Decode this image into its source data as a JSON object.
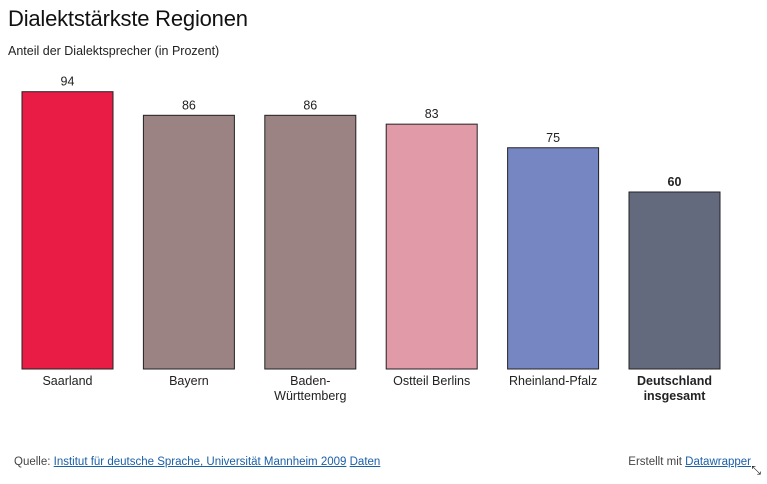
{
  "chart_data": {
    "type": "bar",
    "title": "Dialektstärkste Regionen",
    "subtitle": "Anteil der Dialektsprecher (in Prozent)",
    "categories": [
      "Saarland",
      "Bayern",
      "Baden-Württemberg",
      "Ostteil Berlins",
      "Rheinland-Pfalz",
      "Deutschland insgesamt"
    ],
    "category_lines": [
      [
        "Saarland"
      ],
      [
        "Bayern"
      ],
      [
        "Baden-",
        "Württemberg"
      ],
      [
        "Ostteil Berlins"
      ],
      [
        "Rheinland-Pfalz"
      ],
      [
        "Deutschland",
        "insgesamt"
      ]
    ],
    "values": [
      94,
      86,
      86,
      83,
      75,
      60
    ],
    "value_labels": [
      "94",
      "86",
      "86",
      "83",
      "75",
      "60"
    ],
    "colors": [
      "#e91c45",
      "#9b8283",
      "#9b8283",
      "#e09aa8",
      "#7586c2",
      "#646a7d"
    ],
    "highlight_index": 5,
    "ylim": [
      0,
      100
    ],
    "xlabel": "",
    "ylabel": ""
  },
  "footer": {
    "source_prefix": "Quelle: ",
    "source_link": "Institut für deutsche Sprache, Universität Mannheim 2009",
    "data_link": "Daten",
    "credit_prefix": "Erstellt mit ",
    "credit_link": "Datawrapper"
  },
  "icons": {
    "resize": "resize-icon"
  }
}
